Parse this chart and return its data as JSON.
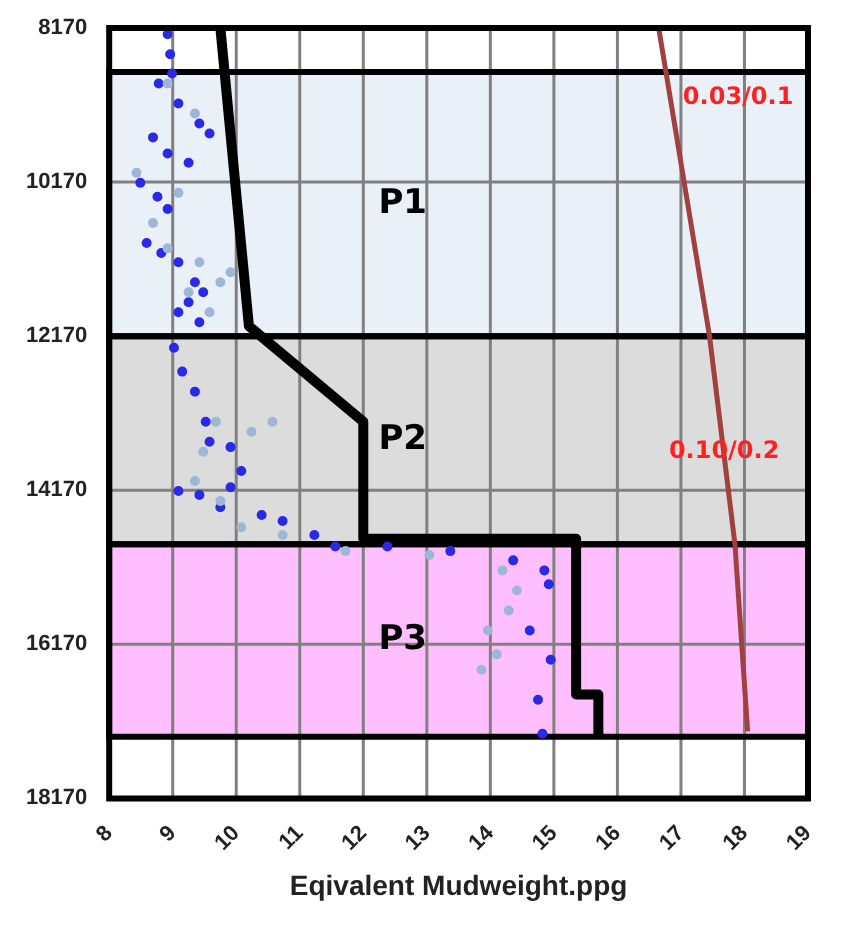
{
  "chart_data": {
    "type": "scatter",
    "xlabel": "Eqivalent Mudweight.ppg",
    "xlim": [
      8,
      19
    ],
    "xticks": [
      8,
      9,
      10,
      11,
      12,
      13,
      14,
      15,
      16,
      17,
      18,
      19
    ],
    "ylim": [
      18170,
      8170
    ],
    "yticks": [
      8170,
      10170,
      12170,
      14170,
      16170,
      18170
    ],
    "grid": true,
    "legend": false,
    "marker": "circle",
    "bands": [
      {
        "axis": "y",
        "from": 8740,
        "to": 12170,
        "label": "P1",
        "color": "#eaf0f8"
      },
      {
        "axis": "y",
        "from": 12170,
        "to": 14870,
        "label": "P2",
        "color": "#dcdcdc"
      },
      {
        "axis": "y",
        "from": 14870,
        "to": 17370,
        "label": "P3",
        "color": "#ffbfff"
      }
    ],
    "annotations": [
      "0.03/0.1",
      "0.10/0.2"
    ],
    "series": [
      {
        "color": "#9fb6d6",
        "x": [
          8.92,
          9.35,
          8.43,
          9.09,
          8.69,
          8.92,
          9.42,
          9.75,
          9.25,
          9.58,
          9.91,
          9.68,
          10.24,
          10.57,
          9.48,
          9.35,
          9.75,
          10.08,
          10.73,
          11.72,
          13.04,
          14.19,
          14.42,
          14.29,
          13.96,
          14.1,
          13.86
        ],
        "values": [
          8890,
          9280,
          10050,
          10310,
          10700,
          11030,
          11210,
          11470,
          11600,
          11860,
          11340,
          13280,
          13410,
          13280,
          13670,
          14050,
          14310,
          14650,
          14750,
          14960,
          15010,
          15210,
          15470,
          15730,
          15990,
          16300,
          16500
        ]
      },
      {
        "color": "#2a2ae6",
        "x": [
          8.92,
          8.96,
          8.99,
          8.78,
          9.09,
          9.42,
          9.58,
          8.69,
          8.92,
          9.25,
          8.49,
          8.76,
          8.92,
          8.59,
          8.82,
          9.09,
          9.35,
          9.48,
          9.25,
          9.09,
          9.42,
          9.02,
          9.15,
          9.35,
          9.52,
          9.58,
          9.91,
          10.08,
          9.91,
          9.09,
          9.42,
          9.75,
          10.4,
          10.73,
          11.23,
          11.56,
          12.38,
          13.37,
          14.36,
          14.85,
          14.92,
          14.62,
          14.95,
          14.75,
          14.82
        ],
        "values": [
          8250,
          8510,
          8760,
          8890,
          9150,
          9410,
          9540,
          9590,
          9800,
          9920,
          10180,
          10360,
          10520,
          10960,
          11090,
          11210,
          11470,
          11600,
          11730,
          11860,
          11990,
          12320,
          12630,
          12890,
          13280,
          13540,
          13610,
          13920,
          14130,
          14180,
          14230,
          14390,
          14490,
          14570,
          14750,
          14900,
          14900,
          14960,
          15080,
          15210,
          15390,
          15990,
          16370,
          16890,
          17330
        ]
      },
      {
        "type": "line",
        "marker": "none",
        "color": "#000000",
        "x": [
          9.75,
          10.2,
          12,
          12,
          15.35,
          15.35,
          15.7,
          15.7
        ],
        "values": [
          8170,
          12040,
          13280,
          14800,
          14800,
          16820,
          16820,
          17330
        ]
      },
      {
        "type": "line",
        "marker": "none",
        "color": "#a0403f",
        "x": [
          16.65,
          17.45,
          17.85,
          18.05
        ],
        "values": [
          8170,
          12170,
          14870,
          17300
        ]
      }
    ]
  }
}
